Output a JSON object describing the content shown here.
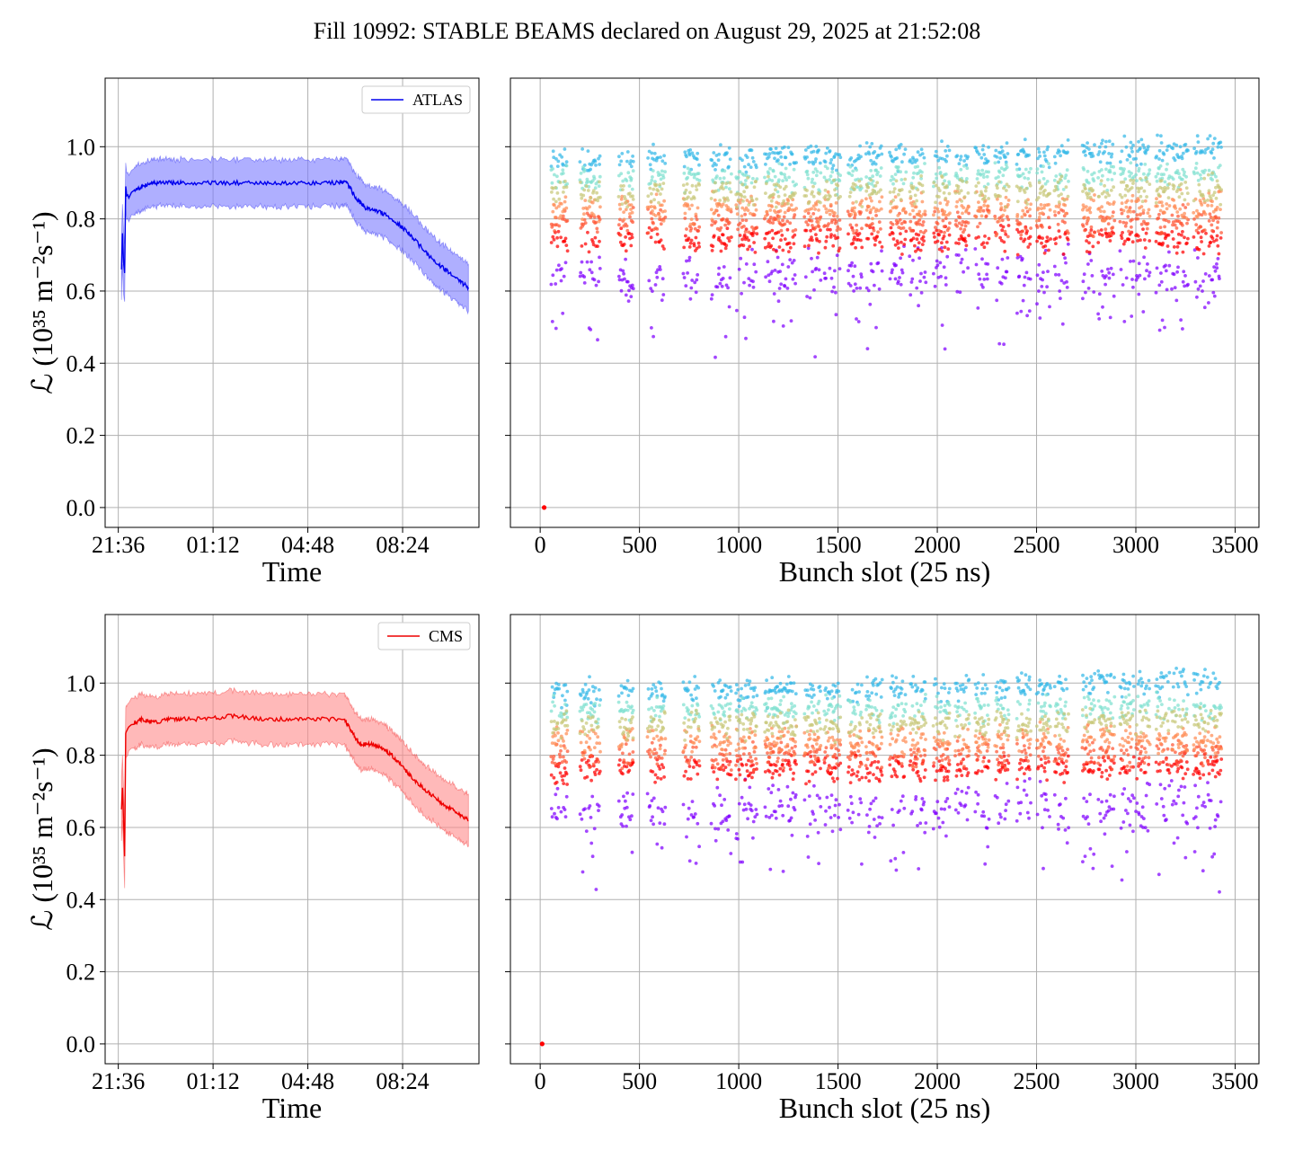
{
  "suptitle": "Fill 10992: STABLE BEAMS declared on August 29, 2025 at 21:52:08",
  "colors": {
    "atlas": "#0000ee",
    "atlas_band": "#7a7aff",
    "cms": "#ee0000",
    "cms_band": "#ff8a8a",
    "grid": "#b0b0b0",
    "scatter_palette": [
      "#8000ff",
      "#ff0000",
      "#ff5533",
      "#ff8c55",
      "#c8c878",
      "#7fe0d0",
      "#35b8e8"
    ]
  },
  "chart_data": [
    {
      "id": "atlas_time",
      "type": "line",
      "title": "",
      "xlabel": "Time",
      "ylabel": "ℒ (10³⁵ m⁻²s⁻¹)",
      "xlim": [
        21.1,
        35.3
      ],
      "ylim": [
        -0.055,
        1.19
      ],
      "xticks": [
        21.6,
        25.2,
        28.8,
        32.4
      ],
      "xticklabels": [
        "21:36",
        "01:12",
        "04:48",
        "08:24"
      ],
      "yticks": [
        0.0,
        0.2,
        0.4,
        0.6,
        0.8,
        1.0
      ],
      "yticklabels": [
        "0.0",
        "0.2",
        "0.4",
        "0.6",
        "0.8",
        "1.0"
      ],
      "grid": true,
      "legend_position": "upper-right",
      "series": [
        {
          "name": "ATLAS",
          "band": 0.065,
          "x": [
            21.72,
            21.76,
            21.8,
            21.84,
            21.88,
            21.92,
            22.0,
            22.2,
            22.5,
            23.0,
            23.5,
            24.0,
            25.0,
            26.0,
            27.0,
            28.0,
            29.0,
            30.0,
            30.3,
            30.6,
            31.0,
            31.5,
            32.0,
            32.5,
            33.0,
            33.5,
            34.0,
            34.5,
            34.9
          ],
          "y": [
            0.66,
            0.76,
            0.68,
            0.65,
            0.89,
            0.87,
            0.86,
            0.88,
            0.89,
            0.9,
            0.9,
            0.9,
            0.9,
            0.9,
            0.9,
            0.9,
            0.9,
            0.9,
            0.9,
            0.86,
            0.83,
            0.82,
            0.8,
            0.77,
            0.73,
            0.69,
            0.66,
            0.63,
            0.61
          ]
        }
      ]
    },
    {
      "id": "atlas_bunch",
      "type": "scatter",
      "title": "",
      "xlabel": "Bunch slot (25 ns)",
      "ylabel": "",
      "xlim": [
        -150,
        3620
      ],
      "ylim": [
        -0.055,
        1.19
      ],
      "xticks": [
        0,
        500,
        1000,
        1500,
        2000,
        2500,
        3000,
        3500
      ],
      "xticklabels": [
        "0",
        "500",
        "1000",
        "1500",
        "2000",
        "2500",
        "3000",
        "3500"
      ],
      "yticks": [
        0.0,
        0.2,
        0.4,
        0.6,
        0.8,
        1.0
      ],
      "grid": true,
      "zero_point": [
        20,
        0.0
      ],
      "trains": [
        [
          55,
          135
        ],
        [
          200,
          300
        ],
        [
          395,
          470
        ],
        [
          540,
          630
        ],
        [
          720,
          800
        ],
        [
          860,
          960
        ],
        [
          985,
          1090
        ],
        [
          1130,
          1200
        ],
        [
          1200,
          1290
        ],
        [
          1330,
          1410
        ],
        [
          1430,
          1510
        ],
        [
          1550,
          1620
        ],
        [
          1640,
          1720
        ],
        [
          1760,
          1840
        ],
        [
          1860,
          1940
        ],
        [
          1980,
          2060
        ],
        [
          2090,
          2160
        ],
        [
          2190,
          2260
        ],
        [
          2290,
          2360
        ],
        [
          2400,
          2470
        ],
        [
          2500,
          2570
        ],
        [
          2590,
          2660
        ],
        [
          2730,
          2790
        ],
        [
          2810,
          2890
        ],
        [
          2920,
          2990
        ],
        [
          3000,
          3070
        ],
        [
          3100,
          3170
        ],
        [
          3180,
          3260
        ],
        [
          3290,
          3350
        ],
        [
          3360,
          3430
        ]
      ],
      "levels": [
        0.64,
        0.74,
        0.79,
        0.83,
        0.87,
        0.91,
        0.96
      ]
    },
    {
      "id": "cms_time",
      "type": "line",
      "title": "",
      "xlabel": "Time",
      "ylabel": "ℒ (10³⁵ m⁻²s⁻¹)",
      "xlim": [
        21.1,
        35.3
      ],
      "ylim": [
        -0.055,
        1.19
      ],
      "xticks": [
        21.6,
        25.2,
        28.8,
        32.4
      ],
      "xticklabels": [
        "21:36",
        "01:12",
        "04:48",
        "08:24"
      ],
      "yticks": [
        0.0,
        0.2,
        0.4,
        0.6,
        0.8,
        1.0
      ],
      "yticklabels": [
        "0.0",
        "0.2",
        "0.4",
        "0.6",
        "0.8",
        "1.0"
      ],
      "grid": true,
      "legend_position": "upper-right",
      "series": [
        {
          "name": "CMS",
          "band": 0.07,
          "x": [
            21.72,
            21.76,
            21.8,
            21.84,
            21.88,
            21.92,
            22.0,
            22.2,
            22.5,
            23.0,
            23.5,
            24.0,
            25.0,
            26.0,
            27.0,
            28.0,
            29.0,
            30.0,
            30.2,
            30.5,
            30.8,
            31.2,
            31.6,
            32.0,
            32.5,
            33.0,
            33.5,
            34.0,
            34.5,
            34.9
          ],
          "y": [
            0.65,
            0.71,
            0.62,
            0.52,
            0.86,
            0.87,
            0.88,
            0.89,
            0.9,
            0.89,
            0.9,
            0.9,
            0.9,
            0.91,
            0.9,
            0.9,
            0.9,
            0.9,
            0.9,
            0.86,
            0.83,
            0.83,
            0.82,
            0.8,
            0.76,
            0.72,
            0.69,
            0.66,
            0.64,
            0.62
          ]
        }
      ]
    },
    {
      "id": "cms_bunch",
      "type": "scatter",
      "title": "",
      "xlabel": "Bunch slot (25 ns)",
      "ylabel": "",
      "xlim": [
        -150,
        3620
      ],
      "ylim": [
        -0.055,
        1.19
      ],
      "xticks": [
        0,
        500,
        1000,
        1500,
        2000,
        2500,
        3000,
        3500
      ],
      "xticklabels": [
        "0",
        "500",
        "1000",
        "1500",
        "2000",
        "2500",
        "3000",
        "3500"
      ],
      "yticks": [
        0.0,
        0.2,
        0.4,
        0.6,
        0.8,
        1.0
      ],
      "grid": true,
      "zero_point": [
        10,
        0.0
      ],
      "trains": [
        [
          55,
          135
        ],
        [
          200,
          300
        ],
        [
          395,
          470
        ],
        [
          540,
          630
        ],
        [
          720,
          800
        ],
        [
          860,
          960
        ],
        [
          985,
          1090
        ],
        [
          1130,
          1200
        ],
        [
          1200,
          1290
        ],
        [
          1330,
          1410
        ],
        [
          1430,
          1510
        ],
        [
          1550,
          1620
        ],
        [
          1640,
          1720
        ],
        [
          1760,
          1840
        ],
        [
          1860,
          1940
        ],
        [
          1980,
          2060
        ],
        [
          2090,
          2160
        ],
        [
          2190,
          2260
        ],
        [
          2290,
          2360
        ],
        [
          2400,
          2470
        ],
        [
          2500,
          2570
        ],
        [
          2590,
          2660
        ],
        [
          2730,
          2790
        ],
        [
          2810,
          2890
        ],
        [
          2920,
          2990
        ],
        [
          3000,
          3070
        ],
        [
          3100,
          3170
        ],
        [
          3180,
          3260
        ],
        [
          3290,
          3350
        ],
        [
          3360,
          3430
        ]
      ],
      "levels": [
        0.65,
        0.76,
        0.8,
        0.84,
        0.88,
        0.92,
        0.97
      ]
    }
  ]
}
